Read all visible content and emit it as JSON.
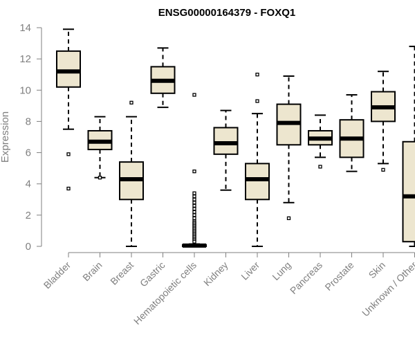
{
  "chart_data": {
    "type": "boxplot",
    "title": "ENSG00000164379 - FOXQ1",
    "ylabel": "Expression",
    "xlabel": "",
    "ylim": [
      0,
      14
    ],
    "yticks": [
      0,
      2,
      4,
      6,
      8,
      10,
      12,
      14
    ],
    "box_color": "#ede6cf",
    "categories": [
      "Bladder",
      "Brain",
      "Breast",
      "Gastric",
      "Hematopoietic cells",
      "Kidney",
      "Liver",
      "Lung",
      "Pancreas",
      "Prostate",
      "Skin",
      "Unknown / Other"
    ],
    "boxes": [
      {
        "category": "Bladder",
        "whisker_low": 7.5,
        "q1": 10.2,
        "median": 11.2,
        "q3": 12.5,
        "whisker_high": 13.9,
        "outliers": [
          5.9,
          3.7
        ]
      },
      {
        "category": "Brain",
        "whisker_low": 4.4,
        "q1": 6.2,
        "median": 6.7,
        "q3": 7.4,
        "whisker_high": 8.3,
        "outliers": [
          4.4
        ]
      },
      {
        "category": "Breast",
        "whisker_low": 0.0,
        "q1": 3.0,
        "median": 4.3,
        "q3": 5.4,
        "whisker_high": 8.3,
        "outliers": [
          9.2
        ]
      },
      {
        "category": "Gastric",
        "whisker_low": 8.9,
        "q1": 9.8,
        "median": 10.6,
        "q3": 11.5,
        "whisker_high": 12.7,
        "outliers": []
      },
      {
        "category": "Hematopoietic cells",
        "whisker_low": 0.0,
        "q1": 0.0,
        "median": 0.05,
        "q3": 0.1,
        "whisker_high": 0.15,
        "outliers": [
          9.7,
          4.8,
          3.4,
          3.2,
          3.0,
          2.8,
          2.6,
          2.4,
          2.2,
          2.0,
          1.8,
          1.6,
          1.5,
          1.4,
          1.3,
          1.2,
          1.1,
          1.0,
          0.9,
          0.8,
          0.7,
          0.6,
          0.5,
          0.4,
          0.3
        ]
      },
      {
        "category": "Kidney",
        "whisker_low": 3.6,
        "q1": 5.9,
        "median": 6.6,
        "q3": 7.6,
        "whisker_high": 8.7,
        "outliers": []
      },
      {
        "category": "Liver",
        "whisker_low": 0.0,
        "q1": 3.0,
        "median": 4.3,
        "q3": 5.3,
        "whisker_high": 8.5,
        "outliers": [
          11.0,
          9.3
        ]
      },
      {
        "category": "Lung",
        "whisker_low": 2.8,
        "q1": 6.5,
        "median": 7.9,
        "q3": 9.1,
        "whisker_high": 10.9,
        "outliers": [
          1.8
        ]
      },
      {
        "category": "Pancreas",
        "whisker_low": 5.7,
        "q1": 6.5,
        "median": 6.9,
        "q3": 7.4,
        "whisker_high": 8.4,
        "outliers": [
          5.1
        ]
      },
      {
        "category": "Prostate",
        "whisker_low": 4.8,
        "q1": 5.7,
        "median": 6.9,
        "q3": 8.1,
        "whisker_high": 9.7,
        "outliers": []
      },
      {
        "category": "Skin",
        "whisker_low": 5.3,
        "q1": 8.0,
        "median": 8.9,
        "q3": 9.9,
        "whisker_high": 11.2,
        "outliers": [
          4.9
        ]
      },
      {
        "category": "Unknown / Other",
        "whisker_low": 0.0,
        "q1": 0.3,
        "median": 3.2,
        "q3": 6.7,
        "whisker_high": 12.8,
        "outliers": []
      }
    ]
  }
}
